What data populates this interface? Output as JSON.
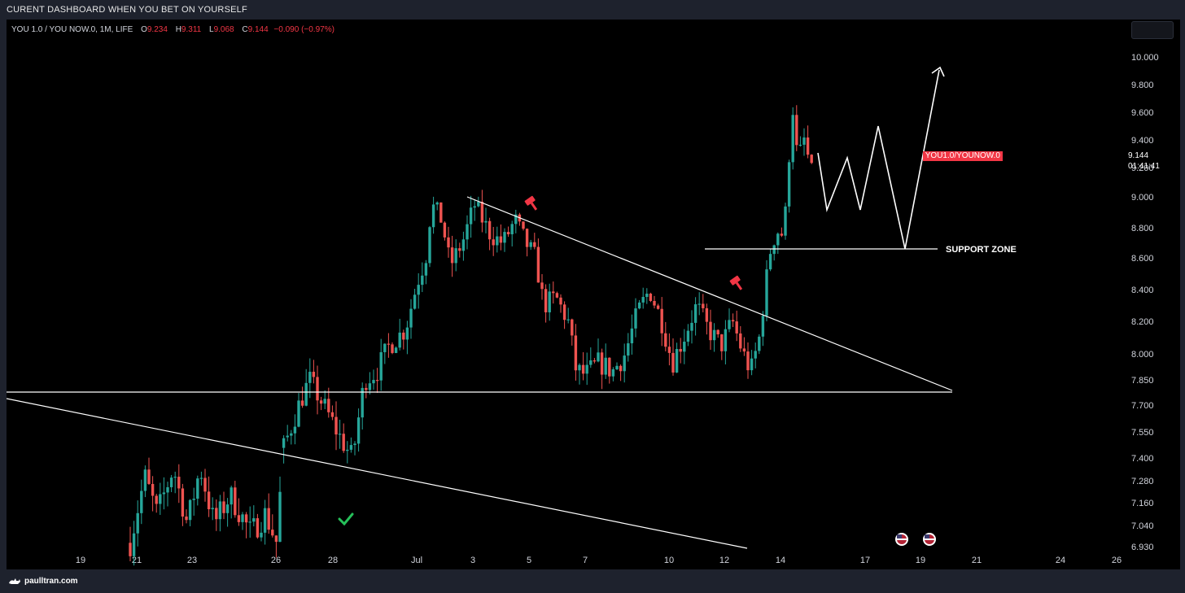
{
  "window": {
    "title": "CURENT DASHBOARD WHEN YOU BET ON YOURSELF"
  },
  "legend": {
    "symbol": "YOU 1.0 / YOU NOW.0, 1M, LIFE",
    "open_key": "O",
    "open": "9.234",
    "high_key": "H",
    "high": "9.311",
    "low_key": "L",
    "low": "9.068",
    "close_key": "C",
    "close": "9.144",
    "change": "−0.090 (−0.97%)"
  },
  "price_tag": {
    "symbol": "YOU1.0/YOUNOW.0",
    "price": "9.144",
    "countdown": "01:41:41"
  },
  "annotations": {
    "support_zone": "SUPPORT ZONE"
  },
  "footer": {
    "brand": "paulltran.com"
  },
  "colors": {
    "up": "#26a69a",
    "down": "#ef5350",
    "tag": "#f23645",
    "axis_text": "#d1d4dc",
    "lines": "#ffffff"
  },
  "icons": [
    "gavel-icon",
    "checkmark-icon",
    "us-flag-event-icon",
    "cat-logo-icon"
  ],
  "chart_data": {
    "type": "candlestick",
    "y_ticks": [
      "10.000",
      "9.800",
      "9.600",
      "9.400",
      "9.200",
      "9.000",
      "8.800",
      "8.600",
      "8.400",
      "8.200",
      "8.000",
      "7.850",
      "7.700",
      "7.550",
      "7.400",
      "7.280",
      "7.160",
      "7.040",
      "6.930"
    ],
    "x_ticks": [
      "19",
      "21",
      "23",
      "26",
      "28",
      "Jul",
      "3",
      "5",
      "7",
      "10",
      "12",
      "14",
      "17",
      "19",
      "21",
      "24",
      "26"
    ],
    "last_close": 9.144
  }
}
